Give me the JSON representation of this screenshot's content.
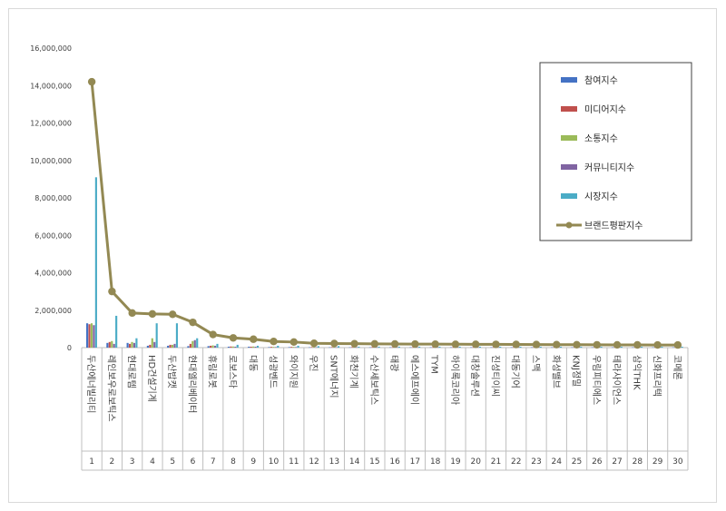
{
  "chart_data": {
    "type": "bar",
    "y_ticks": [
      "0",
      "2,000,000",
      "4,000,000",
      "6,000,000",
      "8,000,000",
      "10,000,000",
      "12,000,000",
      "14,000,000",
      "16,000,000"
    ],
    "ylim": [
      0,
      16000000
    ],
    "grid": false,
    "legend_position": "top-right",
    "categories": [
      "두산에너빌리티",
      "레인보우로보틱스",
      "현대로템",
      "HD건설기계",
      "두산밥캣",
      "현대엘리베이터",
      "휴림로봇",
      "로보스타",
      "대동",
      "성광벤드",
      "와이지원",
      "우진",
      "SNT에너지",
      "화천기계",
      "수산세보틱스",
      "태광",
      "에스에프에이",
      "TYM",
      "하이록코리아",
      "대창솔루션",
      "진성티이씨",
      "대동기어",
      "스맥",
      "화성밸브",
      "KNJ정밀",
      "우림피티에스",
      "테라사이언스",
      "삼익THK",
      "신화프리텍",
      "코메론"
    ],
    "ranks": [
      "1",
      "2",
      "3",
      "4",
      "5",
      "6",
      "7",
      "8",
      "9",
      "10",
      "11",
      "12",
      "13",
      "14",
      "15",
      "16",
      "17",
      "18",
      "19",
      "20",
      "21",
      "22",
      "23",
      "24",
      "25",
      "26",
      "27",
      "28",
      "29",
      "30"
    ],
    "series": [
      {
        "name": "참여지수",
        "type": "bar",
        "color": "#4472c4",
        "values": [
          1300000,
          250000,
          250000,
          100000,
          100000,
          80000,
          80000,
          50000,
          50000,
          30000,
          30000,
          20000,
          20000,
          20000,
          20000,
          20000,
          20000,
          20000,
          20000,
          20000,
          20000,
          20000,
          20000,
          20000,
          20000,
          20000,
          20000,
          20000,
          20000,
          20000
        ]
      },
      {
        "name": "미디어지수",
        "type": "bar",
        "color": "#c0504d",
        "values": [
          1250000,
          300000,
          200000,
          150000,
          150000,
          200000,
          100000,
          60000,
          50000,
          40000,
          40000,
          30000,
          30000,
          30000,
          30000,
          20000,
          20000,
          20000,
          20000,
          20000,
          20000,
          20000,
          20000,
          20000,
          20000,
          20000,
          20000,
          20000,
          20000,
          20000
        ]
      },
      {
        "name": "소통지수",
        "type": "bar",
        "color": "#9bbb59",
        "values": [
          1300000,
          350000,
          300000,
          500000,
          150000,
          350000,
          120000,
          60000,
          60000,
          40000,
          40000,
          30000,
          30000,
          30000,
          30000,
          20000,
          20000,
          20000,
          20000,
          20000,
          20000,
          20000,
          20000,
          20000,
          20000,
          20000,
          20000,
          20000,
          20000,
          20000
        ]
      },
      {
        "name": "커뮤니티지수",
        "type": "bar",
        "color": "#8064a2",
        "values": [
          1200000,
          200000,
          250000,
          300000,
          200000,
          400000,
          100000,
          50000,
          50000,
          30000,
          30000,
          20000,
          20000,
          20000,
          20000,
          20000,
          20000,
          20000,
          20000,
          20000,
          20000,
          20000,
          20000,
          20000,
          20000,
          20000,
          20000,
          20000,
          20000,
          20000
        ]
      },
      {
        "name": "시장지수",
        "type": "bar",
        "color": "#4bacc6",
        "values": [
          9100000,
          1700000,
          500000,
          1300000,
          1300000,
          500000,
          200000,
          150000,
          100000,
          100000,
          100000,
          80000,
          80000,
          50000,
          50000,
          50000,
          50000,
          50000,
          50000,
          50000,
          50000,
          50000,
          50000,
          50000,
          50000,
          50000,
          50000,
          50000,
          50000,
          50000
        ]
      },
      {
        "name": "브랜드평판지수",
        "type": "line",
        "color": "#938953",
        "values": [
          14200000,
          3000000,
          1850000,
          1800000,
          1780000,
          1350000,
          700000,
          520000,
          450000,
          330000,
          300000,
          230000,
          220000,
          210000,
          200000,
          195000,
          190000,
          185000,
          180000,
          178000,
          175000,
          170000,
          165000,
          160000,
          155000,
          150000,
          148000,
          145000,
          142000,
          140000
        ]
      }
    ]
  }
}
